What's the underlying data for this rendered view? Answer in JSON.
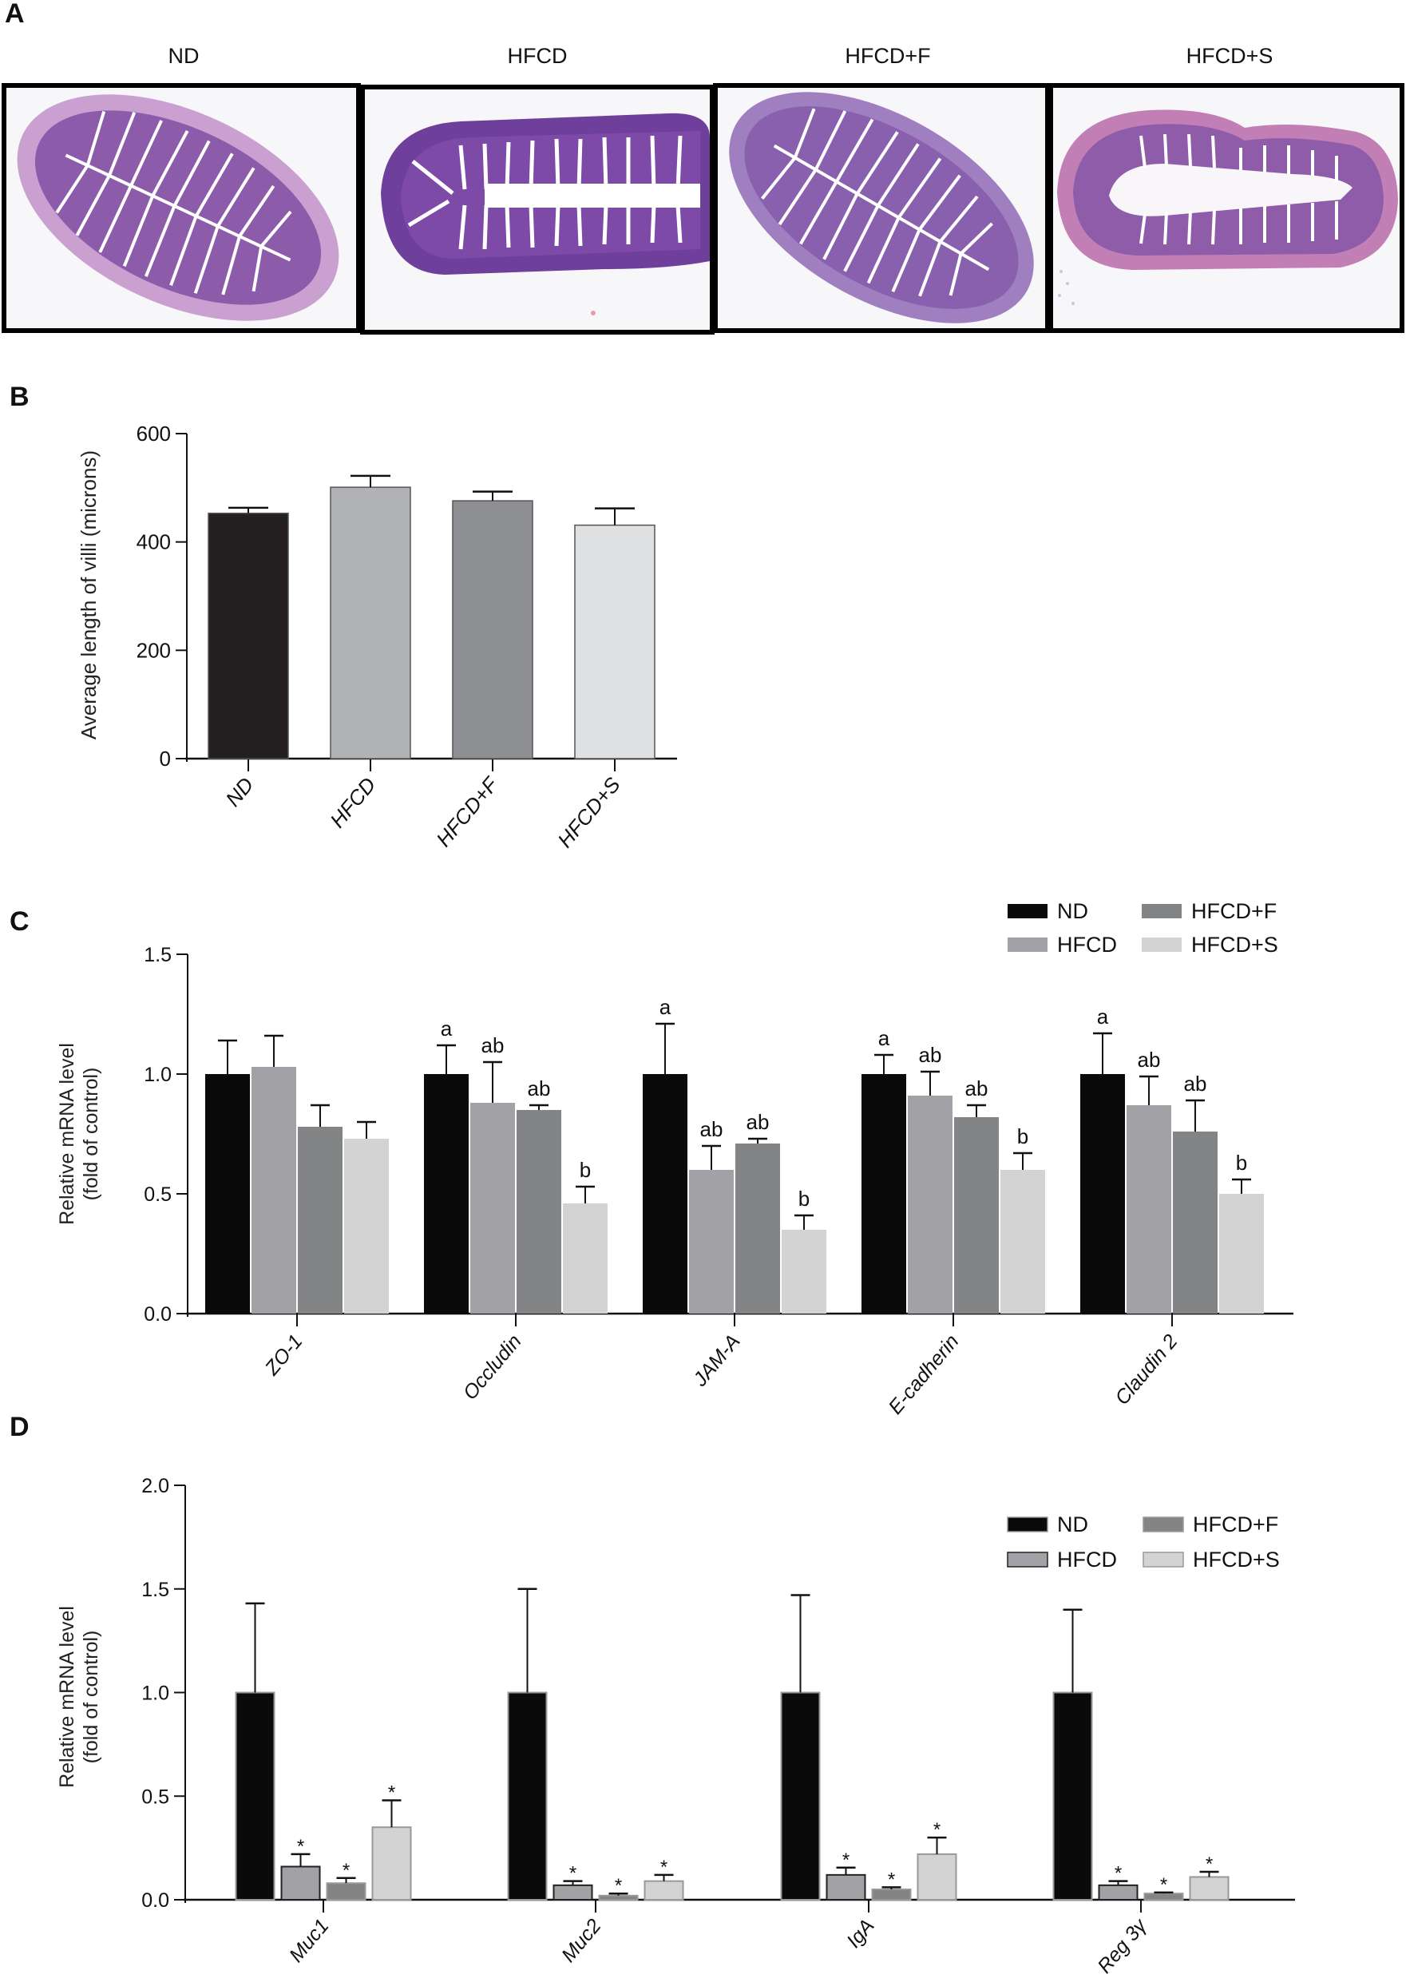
{
  "panels": {
    "A": {
      "letter": "A",
      "groups": [
        "ND",
        "HFCD",
        "HFCD+F",
        "HFCD+S"
      ],
      "content": "H&E stained intestinal cross-sections"
    },
    "B": {
      "letter": "B"
    },
    "C": {
      "letter": "C"
    },
    "D": {
      "letter": "D"
    }
  },
  "colors": {
    "ND": "#0a0a0a",
    "HFCD": "#a2a2a6",
    "HFCD+F": "#838485",
    "HFCD+S": "#d3d3d3",
    "B_ND": "#231f20",
    "B_HFCD": "#b1b2b5",
    "B_HFCD+F": "#8e8f92",
    "B_HFCD+S": "#dfe0e1",
    "tissue_purple": "#8f5fae",
    "tissue_pink": "#c88fc4"
  },
  "chart_data": [
    {
      "id": "B",
      "type": "bar",
      "title": "",
      "xlabel": "",
      "ylabel": "Average length of villi (microns)",
      "ylim": [
        0,
        600
      ],
      "yticks": [
        0,
        200,
        400,
        600
      ],
      "categories": [
        "ND",
        "HFCD",
        "HFCD+F",
        "HFCD+S"
      ],
      "values": [
        453,
        501,
        476,
        431
      ],
      "error_upper": [
        463,
        522,
        493,
        462
      ],
      "grid": false,
      "legend": "none"
    },
    {
      "id": "C",
      "type": "bar",
      "title": "",
      "xlabel": "",
      "ylabel": "Relative mRNA level\n(fold of control)",
      "ylabel_lines": [
        "Relative mRNA level",
        "(fold of control)"
      ],
      "ylim": [
        0,
        1.5
      ],
      "yticks": [
        "0.0",
        "0.5",
        "1.0",
        "1.5"
      ],
      "categories": [
        "ZO-1",
        "Occludin",
        "JAM-A",
        "E-cadherin",
        "Claudin 2"
      ],
      "series": [
        {
          "name": "ND",
          "values": [
            1.0,
            1.0,
            1.0,
            1.0,
            1.0
          ],
          "error_upper": [
            1.14,
            1.12,
            1.21,
            1.08,
            1.17
          ],
          "labels": [
            "",
            "a",
            "a",
            "a",
            "a"
          ]
        },
        {
          "name": "HFCD",
          "values": [
            1.03,
            0.88,
            0.6,
            0.91,
            0.87
          ],
          "error_upper": [
            1.16,
            1.05,
            0.7,
            1.01,
            0.99
          ],
          "labels": [
            "",
            "ab",
            "ab",
            "ab",
            "ab"
          ]
        },
        {
          "name": "HFCD+F",
          "values": [
            0.78,
            0.85,
            0.71,
            0.82,
            0.76
          ],
          "error_upper": [
            0.87,
            0.87,
            0.73,
            0.87,
            0.89
          ],
          "labels": [
            "",
            "ab",
            "ab",
            "ab",
            "ab"
          ]
        },
        {
          "name": "HFCD+S",
          "values": [
            0.73,
            0.46,
            0.35,
            0.6,
            0.5
          ],
          "error_upper": [
            0.8,
            0.53,
            0.41,
            0.67,
            0.56
          ],
          "labels": [
            "",
            "b",
            "b",
            "b",
            "b"
          ]
        }
      ],
      "grid": false,
      "legend": "top-right"
    },
    {
      "id": "D",
      "type": "bar",
      "title": "",
      "xlabel": "",
      "ylabel": "Relative mRNA level\n(fold of control)",
      "ylabel_lines": [
        "Relative mRNA level",
        "(fold of control)"
      ],
      "ylim": [
        0,
        2.0
      ],
      "yticks": [
        "0.0",
        "0.5",
        "1.0",
        "1.5",
        "2.0"
      ],
      "categories": [
        "Muc1",
        "Muc2",
        "IgA",
        "Reg 3γ"
      ],
      "series": [
        {
          "name": "ND",
          "values": [
            1.0,
            1.0,
            1.0,
            1.0
          ],
          "error_upper": [
            1.43,
            1.5,
            1.47,
            1.4
          ],
          "labels": [
            "",
            "",
            "",
            ""
          ]
        },
        {
          "name": "HFCD",
          "values": [
            0.16,
            0.07,
            0.12,
            0.07
          ],
          "error_upper": [
            0.22,
            0.09,
            0.155,
            0.09
          ],
          "labels": [
            "*",
            "*",
            "*",
            "*"
          ]
        },
        {
          "name": "HFCD+F",
          "values": [
            0.08,
            0.02,
            0.05,
            0.03
          ],
          "error_upper": [
            0.105,
            0.03,
            0.06,
            0.035
          ],
          "labels": [
            "*",
            "*",
            "*",
            "*"
          ]
        },
        {
          "name": "HFCD+S",
          "values": [
            0.35,
            0.09,
            0.22,
            0.11
          ],
          "error_upper": [
            0.48,
            0.12,
            0.3,
            0.135
          ],
          "labels": [
            "*",
            "*",
            "*",
            "*"
          ]
        }
      ],
      "grid": false,
      "legend": "top-right"
    }
  ]
}
